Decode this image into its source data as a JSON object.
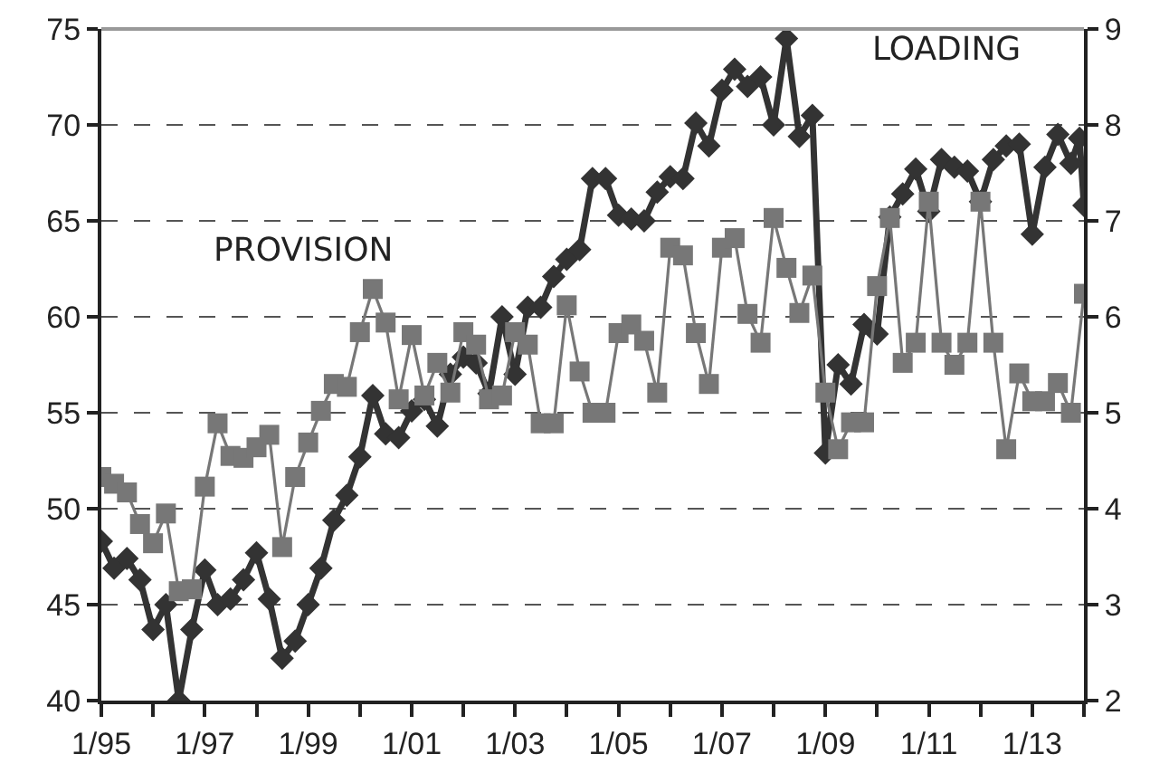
{
  "chart_data": {
    "type": "line",
    "xlim": [
      "1995-01",
      "2014-01"
    ],
    "xticks": [
      {
        "value": "1995-01",
        "label": "1/95"
      },
      {
        "value": "1996-01",
        "label": null
      },
      {
        "value": "1997-01",
        "label": "1/97"
      },
      {
        "value": "1998-01",
        "label": null
      },
      {
        "value": "1999-01",
        "label": "1/99"
      },
      {
        "value": "2000-01",
        "label": null
      },
      {
        "value": "2001-01",
        "label": "1/01"
      },
      {
        "value": "2002-01",
        "label": null
      },
      {
        "value": "2003-01",
        "label": "1/03"
      },
      {
        "value": "2004-01",
        "label": null
      },
      {
        "value": "2005-01",
        "label": "1/05"
      },
      {
        "value": "2006-01",
        "label": null
      },
      {
        "value": "2007-01",
        "label": "1/07"
      },
      {
        "value": "2008-01",
        "label": null
      },
      {
        "value": "2009-01",
        "label": "1/09"
      },
      {
        "value": "2010-01",
        "label": null
      },
      {
        "value": "2011-01",
        "label": "1/11"
      },
      {
        "value": "2012-01",
        "label": null
      },
      {
        "value": "2013-01",
        "label": "1/13"
      },
      {
        "value": "2014-01",
        "label": null
      }
    ],
    "ylim": [
      40,
      75
    ],
    "yticks": [
      40,
      45,
      50,
      55,
      60,
      65,
      70,
      75
    ],
    "y2lim": [
      2,
      9
    ],
    "y2ticks": [
      2,
      3,
      4,
      5,
      6,
      7,
      8,
      9
    ],
    "grid": "y",
    "legend": false,
    "series": [
      {
        "name": "LOADING",
        "color": "#333333",
        "marker": "diamond",
        "line_style": "solid",
        "x": [
          "1995-01",
          "1995-04",
          "1995-07",
          "1995-10",
          "1996-01",
          "1996-04",
          "1996-07",
          "1996-10",
          "1997-01",
          "1997-04",
          "1997-07",
          "1997-10",
          "1998-01",
          "1998-04",
          "1998-07",
          "1998-10",
          "1999-01",
          "1999-04",
          "1999-07",
          "1999-10",
          "2000-01",
          "2000-04",
          "2000-07",
          "2000-10",
          "2001-01",
          "2001-04",
          "2001-07",
          "2001-10",
          "2002-01",
          "2002-04",
          "2002-07",
          "2002-10",
          "2003-01",
          "2003-04",
          "2003-07",
          "2003-10",
          "2004-01",
          "2004-04",
          "2004-07",
          "2004-10",
          "2005-01",
          "2005-04",
          "2005-07",
          "2005-10",
          "2006-01",
          "2006-04",
          "2006-07",
          "2006-10",
          "2007-01",
          "2007-04",
          "2007-07",
          "2007-10",
          "2008-01",
          "2008-04",
          "2008-07",
          "2008-10",
          "2009-01",
          "2009-04",
          "2009-07",
          "2009-10",
          "2010-01",
          "2010-04",
          "2010-07",
          "2010-10",
          "2011-01",
          "2011-04",
          "2011-07",
          "2011-10",
          "2012-01",
          "2012-04",
          "2012-07",
          "2012-10",
          "2013-01",
          "2013-04",
          "2013-07",
          "2013-10",
          "2013-12",
          "2014-01"
        ],
        "values": [
          48.3,
          46.9,
          47.4,
          46.3,
          43.7,
          45.0,
          40.0,
          43.7,
          46.8,
          45.0,
          45.3,
          46.3,
          47.7,
          45.3,
          42.2,
          43.1,
          45.0,
          46.9,
          49.4,
          50.7,
          52.7,
          55.9,
          53.9,
          53.7,
          55.1,
          55.7,
          54.3,
          57.0,
          57.9,
          57.6,
          56.0,
          60.0,
          57.0,
          60.5,
          60.5,
          62.1,
          63.0,
          63.5,
          67.2,
          67.2,
          65.3,
          65.1,
          65.0,
          66.5,
          67.3,
          67.2,
          70.1,
          68.9,
          71.8,
          72.9,
          72.0,
          72.5,
          70.0,
          74.5,
          69.4,
          70.5,
          52.9,
          57.5,
          56.5,
          59.6,
          59.1,
          65.2,
          66.4,
          67.7,
          65.5,
          68.2,
          67.8,
          67.6,
          66.0,
          68.2,
          68.9,
          69.0,
          64.3,
          67.8,
          69.5,
          68.0,
          69.3,
          65.8
        ]
      },
      {
        "name": "PROVISION",
        "color": "#777777",
        "marker": "square",
        "line_style": "solid",
        "axis": "y2",
        "x": [
          "1995-01",
          "1995-04",
          "1995-07",
          "1995-10",
          "1996-01",
          "1996-04",
          "1996-07",
          "1996-10",
          "1997-01",
          "1997-04",
          "1997-07",
          "1997-10",
          "1998-01",
          "1998-04",
          "1998-07",
          "1998-10",
          "1999-01",
          "1999-04",
          "1999-07",
          "1999-10",
          "2000-01",
          "2000-04",
          "2000-07",
          "2000-10",
          "2001-01",
          "2001-04",
          "2001-07",
          "2001-10",
          "2002-01",
          "2002-04",
          "2002-07",
          "2002-10",
          "2003-01",
          "2003-04",
          "2003-07",
          "2003-10",
          "2004-01",
          "2004-04",
          "2004-07",
          "2004-10",
          "2005-01",
          "2005-04",
          "2005-07",
          "2005-10",
          "2006-01",
          "2006-04",
          "2006-07",
          "2006-10",
          "2007-01",
          "2007-04",
          "2007-07",
          "2007-10",
          "2008-01",
          "2008-04",
          "2008-07",
          "2008-10",
          "2009-01",
          "2009-04",
          "2009-07",
          "2009-10",
          "2010-01",
          "2010-04",
          "2010-07",
          "2010-10",
          "2011-01",
          "2011-04",
          "2011-07",
          "2011-10",
          "2012-01",
          "2012-04",
          "2012-07",
          "2012-10",
          "2013-01",
          "2013-04",
          "2013-07",
          "2013-10",
          "2014-01"
        ],
        "values": [
          4.33,
          4.26,
          4.17,
          3.84,
          3.64,
          3.95,
          3.14,
          3.16,
          4.23,
          4.89,
          4.55,
          4.53,
          4.64,
          4.77,
          3.6,
          4.33,
          4.69,
          5.02,
          5.3,
          5.27,
          5.84,
          6.29,
          5.94,
          5.14,
          5.81,
          5.18,
          5.52,
          5.21,
          5.84,
          5.71,
          5.14,
          5.18,
          5.84,
          5.71,
          4.89,
          4.89,
          6.12,
          5.43,
          5.0,
          5.0,
          5.83,
          5.92,
          5.75,
          5.21,
          6.72,
          6.64,
          5.83,
          5.3,
          6.72,
          6.82,
          6.03,
          5.73,
          7.03,
          6.51,
          6.04,
          6.43,
          5.21,
          4.62,
          4.9,
          4.9,
          6.32,
          7.03,
          5.52,
          5.73,
          7.2,
          5.73,
          5.5,
          5.73,
          7.2,
          5.73,
          4.62,
          5.41,
          5.12,
          5.12,
          5.31,
          5.0,
          6.24
        ]
      }
    ]
  }
}
